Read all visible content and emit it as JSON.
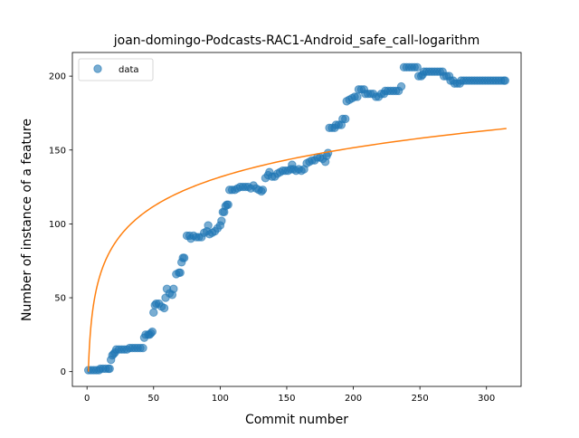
{
  "chart_data": {
    "type": "scatter",
    "title": "joan-domingo-Podcasts-RAC1-Android_safe_call-logarithm",
    "xlabel": "Commit number",
    "ylabel": "Number of instance of a feature",
    "xlim": [
      -11,
      326
    ],
    "ylim": [
      -10,
      216
    ],
    "xticks": [
      0,
      50,
      100,
      150,
      200,
      250,
      300
    ],
    "yticks": [
      0,
      50,
      100,
      150,
      200
    ],
    "grid": false,
    "legend": {
      "placement": "top-left",
      "entries": [
        "data"
      ]
    },
    "colors": {
      "data": "#1f77b4",
      "fit": "#ff7f0e"
    },
    "series": [
      {
        "name": "data",
        "kind": "scatter",
        "points": [
          [
            1,
            1
          ],
          [
            3,
            1
          ],
          [
            5,
            1
          ],
          [
            7,
            1
          ],
          [
            9,
            1
          ],
          [
            10,
            2
          ],
          [
            12,
            2
          ],
          [
            14,
            2
          ],
          [
            16,
            2
          ],
          [
            17,
            2
          ],
          [
            18,
            8
          ],
          [
            19,
            11
          ],
          [
            20,
            12
          ],
          [
            21,
            13
          ],
          [
            22,
            15
          ],
          [
            24,
            15
          ],
          [
            26,
            15
          ],
          [
            28,
            15
          ],
          [
            30,
            15
          ],
          [
            32,
            16
          ],
          [
            34,
            16
          ],
          [
            36,
            16
          ],
          [
            38,
            16
          ],
          [
            40,
            16
          ],
          [
            42,
            16
          ],
          [
            43,
            23
          ],
          [
            44,
            25
          ],
          [
            46,
            25
          ],
          [
            47,
            25
          ],
          [
            48,
            26
          ],
          [
            49,
            27
          ],
          [
            50,
            40
          ],
          [
            51,
            45
          ],
          [
            52,
            46
          ],
          [
            54,
            46
          ],
          [
            56,
            44
          ],
          [
            58,
            43
          ],
          [
            59,
            50
          ],
          [
            60,
            56
          ],
          [
            62,
            53
          ],
          [
            64,
            52
          ],
          [
            65,
            56
          ],
          [
            67,
            66
          ],
          [
            69,
            67
          ],
          [
            70,
            67
          ],
          [
            71,
            74
          ],
          [
            72,
            77
          ],
          [
            73,
            77
          ],
          [
            75,
            92
          ],
          [
            77,
            92
          ],
          [
            78,
            90
          ],
          [
            80,
            92
          ],
          [
            82,
            91
          ],
          [
            84,
            91
          ],
          [
            86,
            91
          ],
          [
            88,
            94
          ],
          [
            90,
            95
          ],
          [
            91,
            99
          ],
          [
            92,
            93
          ],
          [
            94,
            94
          ],
          [
            96,
            95
          ],
          [
            98,
            97
          ],
          [
            100,
            99
          ],
          [
            101,
            102
          ],
          [
            102,
            108
          ],
          [
            103,
            108
          ],
          [
            104,
            112
          ],
          [
            105,
            113
          ],
          [
            106,
            113
          ],
          [
            107,
            123
          ],
          [
            109,
            123
          ],
          [
            111,
            123
          ],
          [
            113,
            124
          ],
          [
            115,
            125
          ],
          [
            117,
            125
          ],
          [
            119,
            125
          ],
          [
            121,
            125
          ],
          [
            123,
            124
          ],
          [
            125,
            126
          ],
          [
            127,
            124
          ],
          [
            129,
            123
          ],
          [
            131,
            122
          ],
          [
            132,
            123
          ],
          [
            134,
            131
          ],
          [
            136,
            133
          ],
          [
            137,
            135
          ],
          [
            139,
            132
          ],
          [
            141,
            132
          ],
          [
            143,
            134
          ],
          [
            145,
            135
          ],
          [
            147,
            136
          ],
          [
            149,
            136
          ],
          [
            151,
            136
          ],
          [
            153,
            137
          ],
          [
            154,
            140
          ],
          [
            155,
            137
          ],
          [
            157,
            136
          ],
          [
            159,
            137
          ],
          [
            161,
            136
          ],
          [
            163,
            137
          ],
          [
            165,
            141
          ],
          [
            167,
            142
          ],
          [
            169,
            143
          ],
          [
            171,
            143
          ],
          [
            173,
            145
          ],
          [
            175,
            145
          ],
          [
            177,
            144
          ],
          [
            179,
            142
          ],
          [
            180,
            146
          ],
          [
            181,
            148
          ],
          [
            182,
            165
          ],
          [
            184,
            165
          ],
          [
            186,
            165
          ],
          [
            187,
            167
          ],
          [
            189,
            167
          ],
          [
            191,
            167
          ],
          [
            192,
            171
          ],
          [
            194,
            171
          ],
          [
            195,
            183
          ],
          [
            197,
            184
          ],
          [
            199,
            185
          ],
          [
            201,
            186
          ],
          [
            203,
            186
          ],
          [
            204,
            191
          ],
          [
            206,
            191
          ],
          [
            208,
            191
          ],
          [
            209,
            188
          ],
          [
            211,
            188
          ],
          [
            213,
            188
          ],
          [
            215,
            188
          ],
          [
            217,
            186
          ],
          [
            219,
            186
          ],
          [
            221,
            188
          ],
          [
            223,
            188
          ],
          [
            224,
            190
          ],
          [
            226,
            190
          ],
          [
            228,
            190
          ],
          [
            230,
            190
          ],
          [
            232,
            190
          ],
          [
            234,
            190
          ],
          [
            236,
            193
          ],
          [
            238,
            206
          ],
          [
            240,
            206
          ],
          [
            242,
            206
          ],
          [
            244,
            206
          ],
          [
            246,
            206
          ],
          [
            248,
            206
          ],
          [
            249,
            200
          ],
          [
            251,
            200
          ],
          [
            252,
            201
          ],
          [
            253,
            203
          ],
          [
            255,
            203
          ],
          [
            257,
            203
          ],
          [
            259,
            203
          ],
          [
            261,
            203
          ],
          [
            263,
            203
          ],
          [
            265,
            203
          ],
          [
            267,
            203
          ],
          [
            268,
            200
          ],
          [
            270,
            200
          ],
          [
            272,
            200
          ],
          [
            273,
            197
          ],
          [
            275,
            197
          ],
          [
            276,
            195
          ],
          [
            278,
            195
          ],
          [
            280,
            195
          ],
          [
            281,
            197
          ],
          [
            283,
            197
          ],
          [
            285,
            197
          ],
          [
            287,
            197
          ],
          [
            289,
            197
          ],
          [
            291,
            197
          ],
          [
            293,
            197
          ],
          [
            295,
            197
          ],
          [
            297,
            197
          ],
          [
            299,
            197
          ],
          [
            301,
            197
          ],
          [
            303,
            197
          ],
          [
            305,
            197
          ],
          [
            307,
            197
          ],
          [
            309,
            197
          ],
          [
            311,
            197
          ],
          [
            313,
            197
          ],
          [
            314,
            197
          ]
        ]
      },
      {
        "name": "",
        "kind": "line",
        "equation": "y = 28.6 * ln(x)",
        "coef": 28.6,
        "x_range": [
          1,
          315
        ]
      }
    ]
  }
}
